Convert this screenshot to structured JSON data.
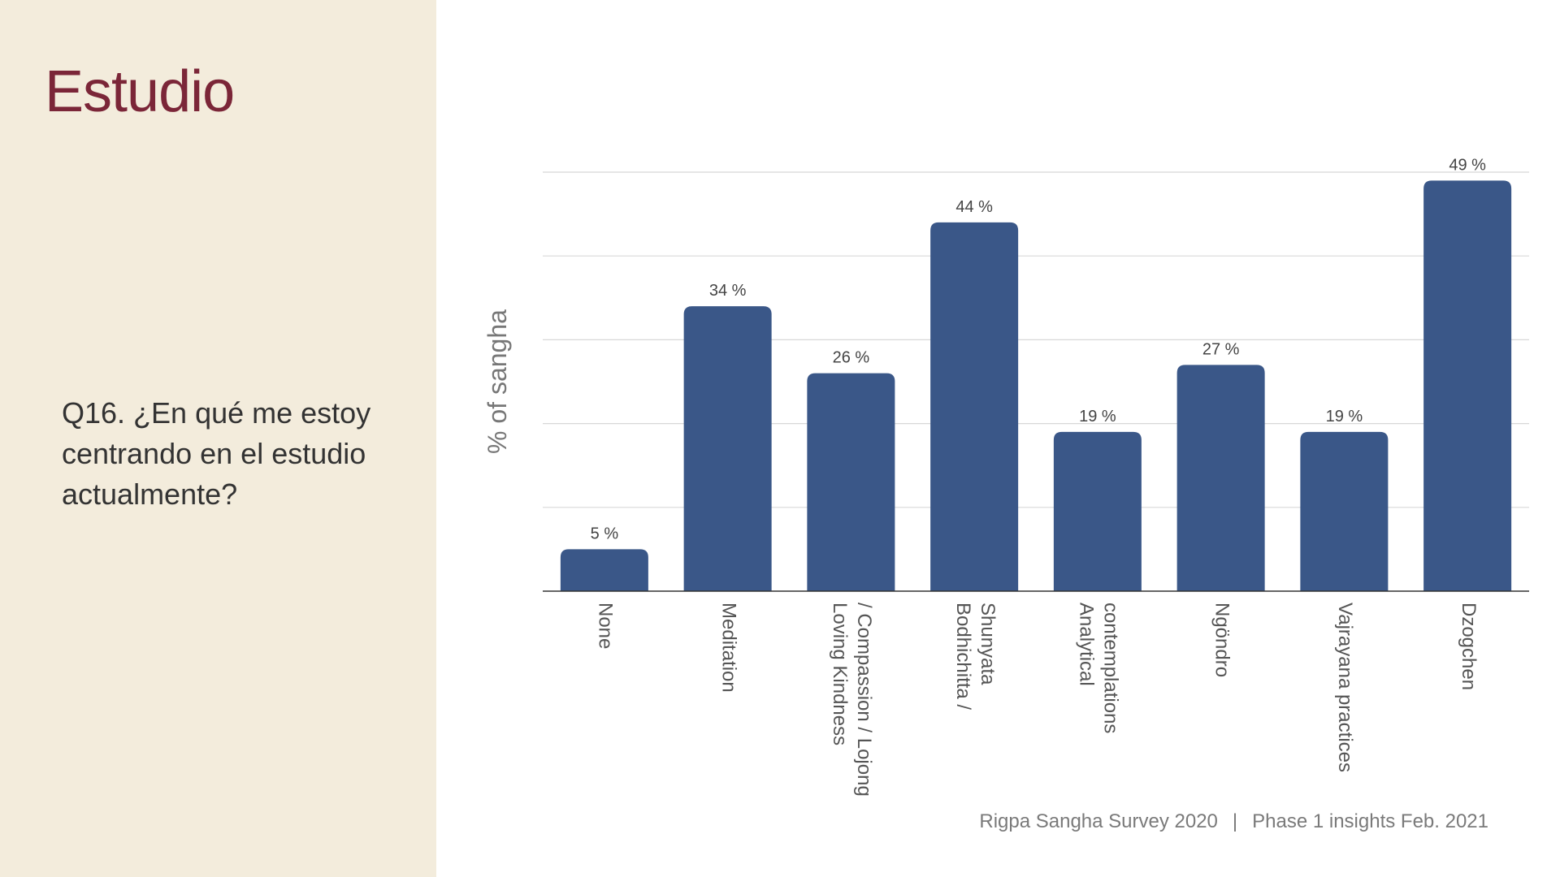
{
  "slide": {
    "title": "Estudio",
    "question": "Q16. ¿En qué me estoy centrando en el estudio actualmente?",
    "footer_left": "Rigpa Sangha Survey 2020",
    "footer_separator": "|",
    "footer_right": "Phase 1 insights Feb. 2021"
  },
  "colors": {
    "panel_bg": "#f3ecdc",
    "title": "#7b2638",
    "bar": "#3a5788",
    "grid": "#d8d8d8",
    "axis": "#333333",
    "label": "#555555"
  },
  "chart_data": {
    "type": "bar",
    "title": "",
    "xlabel": "",
    "ylabel": "% of sangha",
    "ylim": [
      0,
      50
    ],
    "grid": true,
    "categories": [
      [
        "None"
      ],
      [
        "Meditation"
      ],
      [
        "Loving Kindness",
        "/ Compassion / Lojong"
      ],
      [
        "Bodhichitta /",
        "Shunyata"
      ],
      [
        "Analytical",
        "contemplations"
      ],
      [
        "Ngöndro"
      ],
      [
        "Vajrayana practices"
      ],
      [
        "Dzogchen"
      ]
    ],
    "values": [
      5,
      34,
      26,
      44,
      19,
      27,
      19,
      49
    ],
    "value_labels": [
      "5 %",
      "34 %",
      "26 %",
      "44 %",
      "19 %",
      "27 %",
      "19 %",
      "49 %"
    ]
  }
}
